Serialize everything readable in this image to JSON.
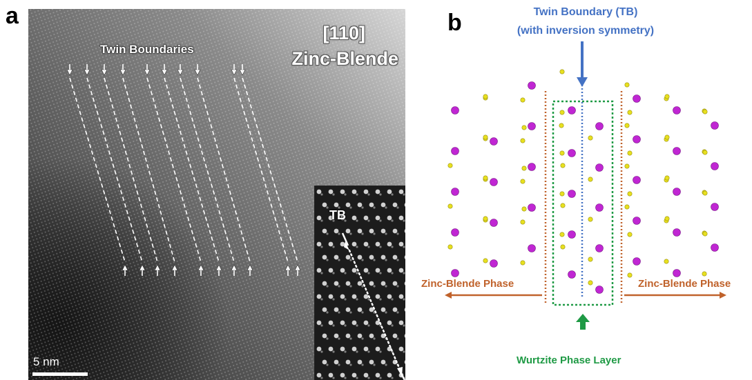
{
  "panel_a": {
    "letter": "a",
    "twin_boundaries_label": "Twin Boundaries",
    "orientation": "[110]",
    "structure": "Zinc-Blende",
    "scale_bar_label": "5 nm",
    "inset_label": "TB"
  },
  "panel_b": {
    "letter": "b",
    "title": "Twin Boundary (TB)",
    "subtitle": "(with inversion symmetry)",
    "left_phase": "Zinc-Blende Phase",
    "right_phase": "Zinc-Blende Phase",
    "wurtzite_label": "Wurtzite Phase Layer"
  },
  "colors": {
    "atom_large": "#c026d3",
    "atom_small": "#e8e020",
    "tb_blue": "#4472c4",
    "zb_orange": "#c0622b",
    "wz_green": "#1f9a45"
  }
}
